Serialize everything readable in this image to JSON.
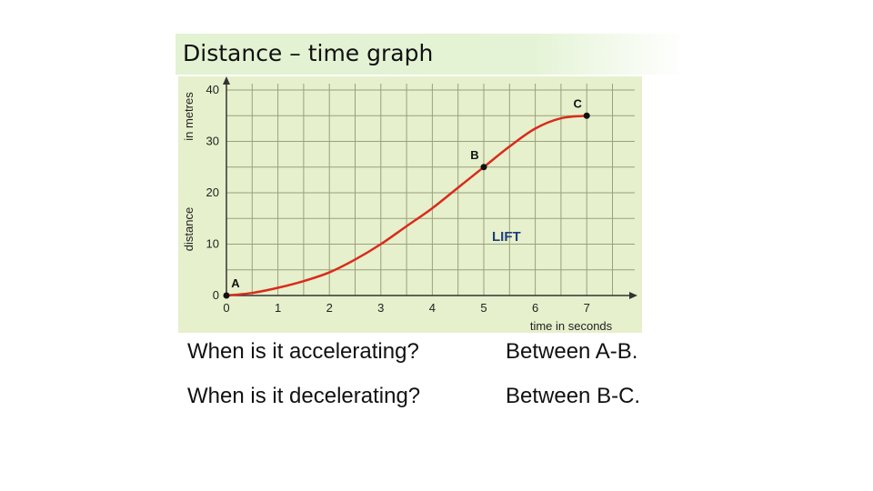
{
  "slide": {
    "title": "Distance – time  graph"
  },
  "chart_data": {
    "type": "line",
    "xlabel": "time in seconds",
    "ylabel": "distance",
    "ylabel_unit": "in metres",
    "xlim": [
      0,
      7.8
    ],
    "ylim": [
      0,
      42
    ],
    "x_ticks": [
      0,
      1,
      2,
      3,
      4,
      5,
      6,
      7
    ],
    "y_ticks": [
      0,
      10,
      20,
      30,
      40
    ],
    "grid": true,
    "annotation": "LIFT",
    "series": [
      {
        "color": "#d92b1c",
        "x": [
          0,
          0.5,
          1,
          1.5,
          2,
          2.5,
          3,
          3.5,
          4,
          4.5,
          5,
          5.5,
          6,
          6.5,
          7
        ],
        "y": [
          0,
          0.5,
          1.5,
          2.8,
          4.5,
          7,
          10,
          13.5,
          17,
          21,
          25,
          29,
          32.5,
          34.5,
          35
        ]
      }
    ],
    "points": [
      {
        "label": "A",
        "x": 0,
        "y": 0
      },
      {
        "label": "B",
        "x": 5,
        "y": 25
      },
      {
        "label": "C",
        "x": 7,
        "y": 35
      }
    ]
  },
  "questions": [
    {
      "question": "When is it accelerating?",
      "answer": "Between A-B."
    },
    {
      "question": "When is it decelerating?",
      "answer": "Between B-C."
    }
  ]
}
